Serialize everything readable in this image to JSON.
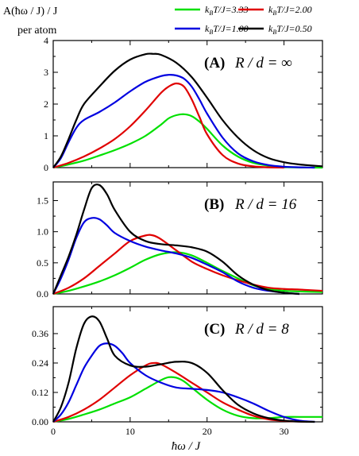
{
  "y_axis_label_line1": "A(ħω / J) / J",
  "y_axis_label_line2": "per atom",
  "legend": [
    {
      "label": "k_BT/J=3.33",
      "sub": "B",
      "text": "T/J=3.33",
      "color": "#00e000"
    },
    {
      "label": "k_BT/J=2.00",
      "sub": "B",
      "text": "T/J=2.00",
      "color": "#e00000"
    },
    {
      "label": "k_BT/J=1.00",
      "sub": "B",
      "text": "T/J=1.00",
      "color": "#0000e0"
    },
    {
      "label": "k_BT/J=0.50",
      "sub": "B",
      "text": "T/J=0.50",
      "color": "#000000"
    }
  ],
  "chart_data": [
    {
      "type": "line",
      "panel_tag": "(A)",
      "panel_eq": "R / d = ∞",
      "xlabel": "ħω / J",
      "xlim": [
        0,
        35
      ],
      "ylim": [
        0,
        4
      ],
      "x_ticks": [
        0,
        10,
        20,
        30
      ],
      "y_ticks": [
        0,
        1,
        2,
        3,
        4
      ],
      "y_tick_labels": [
        "0",
        "1",
        "2",
        "3",
        "4"
      ],
      "series": [
        {
          "name": "k_BT/J=3.33",
          "color": "#00e000",
          "x": [
            0,
            2,
            4,
            6,
            8,
            10,
            12,
            14,
            15,
            16,
            17,
            18,
            19,
            20,
            22,
            24,
            26,
            28,
            30,
            32,
            35
          ],
          "y": [
            0,
            0.1,
            0.22,
            0.38,
            0.55,
            0.75,
            1.0,
            1.35,
            1.55,
            1.65,
            1.68,
            1.62,
            1.45,
            1.22,
            0.7,
            0.35,
            0.15,
            0.06,
            0.02,
            0.005,
            0
          ]
        },
        {
          "name": "k_BT/J=2.00",
          "color": "#e00000",
          "x": [
            0,
            2,
            4,
            6,
            8,
            10,
            12,
            14,
            15,
            16,
            17,
            18,
            19,
            20,
            22,
            24,
            26,
            28,
            30
          ],
          "y": [
            0,
            0.15,
            0.35,
            0.6,
            0.9,
            1.3,
            1.8,
            2.35,
            2.55,
            2.65,
            2.55,
            2.15,
            1.6,
            1.05,
            0.4,
            0.13,
            0.04,
            0.01,
            0
          ]
        },
        {
          "name": "k_BT/J=1.00",
          "color": "#0000e0",
          "x": [
            0,
            1,
            2,
            3,
            4,
            6,
            8,
            10,
            12,
            14,
            15,
            16,
            17,
            18,
            19,
            20,
            22,
            24,
            26,
            28,
            30,
            32,
            34
          ],
          "y": [
            0,
            0.3,
            0.8,
            1.25,
            1.5,
            1.75,
            2.05,
            2.4,
            2.7,
            2.88,
            2.92,
            2.9,
            2.8,
            2.55,
            2.15,
            1.7,
            0.95,
            0.45,
            0.2,
            0.08,
            0.03,
            0.01,
            0
          ]
        },
        {
          "name": "k_BT/J=0.50",
          "color": "#000000",
          "x": [
            0,
            1,
            2,
            3,
            4,
            6,
            8,
            10,
            12,
            13,
            14,
            16,
            18,
            20,
            22,
            24,
            26,
            28,
            30,
            32,
            35
          ],
          "y": [
            0,
            0.35,
            0.9,
            1.5,
            2.0,
            2.55,
            3.05,
            3.4,
            3.57,
            3.58,
            3.55,
            3.3,
            2.85,
            2.2,
            1.5,
            0.95,
            0.55,
            0.3,
            0.17,
            0.1,
            0.04
          ]
        }
      ]
    },
    {
      "type": "line",
      "panel_tag": "(B)",
      "panel_eq": "R / d = 16",
      "xlabel": "ħω / J",
      "xlim": [
        0,
        35
      ],
      "ylim": [
        0,
        1.8
      ],
      "x_ticks": [
        0,
        10,
        20,
        30
      ],
      "y_ticks": [
        0,
        0.5,
        1.0,
        1.5
      ],
      "y_tick_labels": [
        "0.0",
        "0.5",
        "1.0",
        "1.5"
      ],
      "series": [
        {
          "name": "k_BT/J=3.33",
          "color": "#00e000",
          "x": [
            0,
            2,
            4,
            6,
            8,
            10,
            12,
            14,
            16,
            18,
            20,
            22,
            24,
            26,
            28,
            30,
            32,
            35
          ],
          "y": [
            0,
            0.05,
            0.12,
            0.2,
            0.3,
            0.42,
            0.55,
            0.64,
            0.67,
            0.62,
            0.5,
            0.37,
            0.25,
            0.14,
            0.08,
            0.05,
            0.04,
            0.03
          ]
        },
        {
          "name": "k_BT/J=2.00",
          "color": "#e00000",
          "x": [
            0,
            2,
            4,
            6,
            8,
            10,
            12,
            13,
            14,
            16,
            18,
            20,
            22,
            24,
            26,
            28,
            30,
            32,
            35
          ],
          "y": [
            0,
            0.1,
            0.25,
            0.45,
            0.65,
            0.85,
            0.94,
            0.94,
            0.88,
            0.7,
            0.52,
            0.4,
            0.3,
            0.22,
            0.15,
            0.1,
            0.08,
            0.07,
            0.05
          ]
        },
        {
          "name": "k_BT/J=1.00",
          "color": "#0000e0",
          "x": [
            0,
            1,
            2,
            3,
            4,
            5,
            6,
            7,
            8,
            10,
            12,
            14,
            16,
            18,
            20,
            22,
            24,
            26,
            28,
            30,
            32
          ],
          "y": [
            0,
            0.25,
            0.55,
            0.9,
            1.15,
            1.22,
            1.2,
            1.1,
            0.98,
            0.85,
            0.76,
            0.7,
            0.65,
            0.58,
            0.47,
            0.35,
            0.2,
            0.1,
            0.05,
            0.02,
            0
          ]
        },
        {
          "name": "k_BT/J=0.50",
          "color": "#000000",
          "x": [
            0,
            1,
            2,
            3,
            4,
            5,
            6,
            7,
            8,
            10,
            12,
            14,
            16,
            18,
            20,
            22,
            24,
            26,
            28,
            30,
            32
          ],
          "y": [
            0,
            0.3,
            0.6,
            0.95,
            1.35,
            1.7,
            1.75,
            1.6,
            1.35,
            1.0,
            0.85,
            0.8,
            0.78,
            0.75,
            0.68,
            0.52,
            0.3,
            0.15,
            0.06,
            0.02,
            0
          ]
        }
      ]
    },
    {
      "type": "line",
      "panel_tag": "(C)",
      "panel_eq": "R / d = 8",
      "xlabel": "ħω / J",
      "xlim": [
        0,
        35
      ],
      "ylim": [
        0,
        0.47
      ],
      "x_ticks": [
        0,
        10,
        20,
        30
      ],
      "y_ticks": [
        0,
        0.12,
        0.24,
        0.36
      ],
      "y_tick_labels": [
        "0.00",
        "0.12",
        "0.24",
        "0.36"
      ],
      "series": [
        {
          "name": "k_BT/J=3.33",
          "color": "#00e000",
          "x": [
            0,
            2,
            4,
            6,
            8,
            10,
            12,
            14,
            15,
            16,
            17,
            18,
            20,
            22,
            24,
            26,
            28,
            30,
            32,
            35
          ],
          "y": [
            0,
            0.012,
            0.03,
            0.05,
            0.075,
            0.1,
            0.135,
            0.17,
            0.182,
            0.18,
            0.165,
            0.14,
            0.09,
            0.05,
            0.025,
            0.015,
            0.015,
            0.02,
            0.02,
            0.02
          ]
        },
        {
          "name": "k_BT/J=2.00",
          "color": "#e00000",
          "x": [
            0,
            2,
            4,
            6,
            8,
            10,
            12,
            13,
            14,
            16,
            18,
            20,
            22,
            24,
            26,
            28,
            30,
            32,
            33
          ],
          "y": [
            0,
            0.02,
            0.05,
            0.09,
            0.14,
            0.19,
            0.23,
            0.24,
            0.235,
            0.2,
            0.16,
            0.12,
            0.08,
            0.05,
            0.025,
            0.01,
            0.004,
            0.001,
            0
          ]
        },
        {
          "name": "k_BT/J=1.00",
          "color": "#0000e0",
          "x": [
            0,
            1,
            2,
            3,
            4,
            5,
            6,
            7,
            8,
            9,
            10,
            12,
            14,
            16,
            18,
            20,
            22,
            24,
            26,
            28,
            30,
            32,
            34
          ],
          "y": [
            0,
            0.03,
            0.08,
            0.15,
            0.22,
            0.27,
            0.31,
            0.32,
            0.31,
            0.28,
            0.24,
            0.19,
            0.16,
            0.14,
            0.135,
            0.13,
            0.12,
            0.1,
            0.075,
            0.045,
            0.02,
            0.005,
            0
          ]
        },
        {
          "name": "k_BT/J=0.50",
          "color": "#000000",
          "x": [
            0,
            1,
            2,
            3,
            4,
            5,
            6,
            7,
            8,
            10,
            12,
            14,
            16,
            18,
            20,
            22,
            24,
            26,
            28,
            30,
            32,
            34
          ],
          "y": [
            0,
            0.06,
            0.16,
            0.3,
            0.4,
            0.43,
            0.41,
            0.34,
            0.27,
            0.23,
            0.225,
            0.235,
            0.245,
            0.24,
            0.2,
            0.13,
            0.07,
            0.035,
            0.015,
            0.005,
            0.001,
            0
          ]
        }
      ]
    }
  ]
}
